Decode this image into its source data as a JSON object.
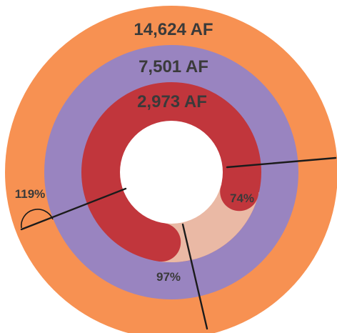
{
  "chart_data": {
    "type": "pie",
    "rings": [
      {
        "label": "14,624 AF",
        "color": "#F79152"
      },
      {
        "label": "7,501 AF",
        "color": "#9984C0"
      },
      {
        "label": "2,973 AF",
        "color": "#C1363C"
      }
    ],
    "annotations": [
      {
        "text": "119%"
      },
      {
        "text": "97%"
      },
      {
        "text": "74%"
      }
    ],
    "colors": {
      "light_fill": "#EAB9A5",
      "divider": "#1b1b1b",
      "hole": "#ffffff"
    }
  }
}
